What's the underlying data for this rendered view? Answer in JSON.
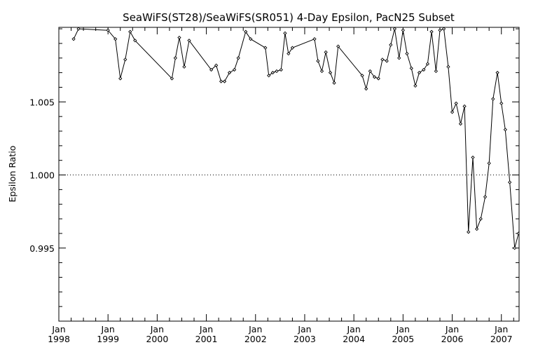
{
  "chart_data": {
    "type": "line",
    "title": "SeaWiFS(ST28)/SeaWiFS(SR051) 4-Day Epsilon, PacN25 Subset",
    "xlabel": "",
    "ylabel": "Epsilon Ratio",
    "xlim": [
      1998.0,
      2007.36
    ],
    "ylim": [
      0.99,
      1.0101
    ],
    "x_ticks": [
      {
        "value": 1998,
        "month": "Jan",
        "year": "1998"
      },
      {
        "value": 1999,
        "month": "Jan",
        "year": "1999"
      },
      {
        "value": 2000,
        "month": "Jan",
        "year": "2000"
      },
      {
        "value": 2001,
        "month": "Jan",
        "year": "2001"
      },
      {
        "value": 2002,
        "month": "Jan",
        "year": "2002"
      },
      {
        "value": 2003,
        "month": "Jan",
        "year": "2003"
      },
      {
        "value": 2004,
        "month": "Jan",
        "year": "2004"
      },
      {
        "value": 2005,
        "month": "Jan",
        "year": "2005"
      },
      {
        "value": 2006,
        "month": "Jan",
        "year": "2006"
      },
      {
        "value": 2007,
        "month": "Jan",
        "year": "2007"
      }
    ],
    "y_ticks": [
      {
        "value": 0.995,
        "label": "0.995"
      },
      {
        "value": 1.0,
        "label": "1.000"
      },
      {
        "value": 1.005,
        "label": "1.005"
      }
    ],
    "reference_line": 1.0,
    "marker": "diamond",
    "series": [
      {
        "x": [
          1998.3,
          1998.4,
          1999.0,
          1999.15,
          1999.25,
          1999.35,
          1999.45,
          1999.55,
          2000.3,
          2000.37,
          2000.45,
          2000.55,
          2000.65,
          2001.1,
          2001.2,
          2001.3,
          2001.37,
          2001.47,
          2001.57,
          2001.65,
          2001.8,
          2001.9,
          2002.2,
          2002.27,
          2002.35,
          2002.43,
          2002.52,
          2002.6,
          2002.67,
          2002.75,
          2003.2,
          2003.27,
          2003.35,
          2003.43,
          2003.52,
          2003.6,
          2003.68,
          2004.17,
          2004.25,
          2004.33,
          2004.42,
          2004.5,
          2004.58,
          2004.67,
          2004.75,
          2004.83,
          2004.92,
          2005.0,
          2005.08,
          2005.17,
          2005.25,
          2005.33,
          2005.42,
          2005.5,
          2005.58,
          2005.67,
          2005.75,
          2005.83,
          2005.92,
          2006.0,
          2006.08,
          2006.17,
          2006.25,
          2006.33,
          2006.42,
          2006.5,
          2006.58,
          2006.67,
          2006.75,
          2006.83,
          2006.92,
          2007.0,
          2007.08,
          2007.17,
          2007.27,
          2007.35
        ],
        "y": [
          1.0093,
          1.01,
          1.0099,
          1.0093,
          1.0066,
          1.0079,
          1.0098,
          1.0092,
          1.0066,
          1.008,
          1.0094,
          1.0074,
          1.0092,
          1.0072,
          1.0075,
          1.0064,
          1.0064,
          1.007,
          1.0072,
          1.008,
          1.0098,
          1.0093,
          1.0087,
          1.0068,
          1.007,
          1.0071,
          1.0072,
          1.0097,
          1.0083,
          1.0087,
          1.0093,
          1.0078,
          1.0071,
          1.0084,
          1.007,
          1.0063,
          1.0088,
          1.0068,
          1.0059,
          1.0071,
          1.0067,
          1.0066,
          1.0079,
          1.0078,
          1.0089,
          1.01,
          1.008,
          1.0099,
          1.0083,
          1.0073,
          1.0061,
          1.007,
          1.0072,
          1.0076,
          1.0098,
          1.0071,
          1.0099,
          1.01,
          1.0074,
          1.0043,
          1.0049,
          1.0035,
          1.0047,
          0.9961,
          1.0012,
          0.9963,
          0.997,
          0.9985,
          1.0008,
          1.0052,
          1.007,
          1.0049,
          1.0031,
          0.9995,
          0.995,
          0.996
        ]
      }
    ]
  }
}
